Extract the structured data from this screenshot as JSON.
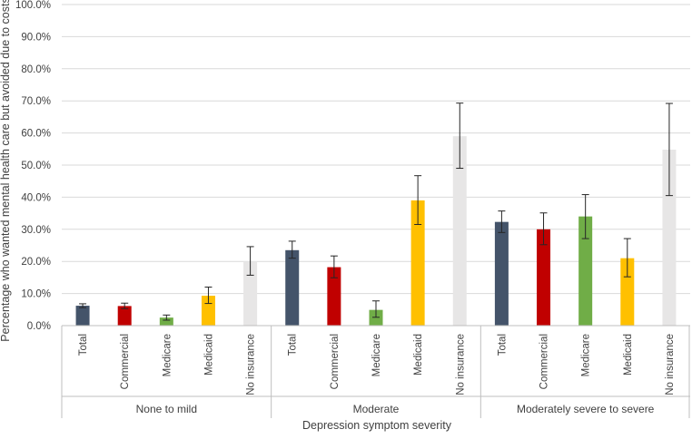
{
  "chart_data": {
    "type": "bar",
    "title": "",
    "ylabel": "Percentage who wanted mental health care but avoided due to costs",
    "xlabel": "Depression symptom severity",
    "ylim": [
      0,
      100
    ],
    "yticks": [
      "0.0%",
      "10.0%",
      "20.0%",
      "30.0%",
      "40.0%",
      "50.0%",
      "60.0%",
      "70.0%",
      "80.0%",
      "90.0%",
      "100.0%"
    ],
    "groups": [
      {
        "label": "None to mild",
        "bars": [
          {
            "label": "Total",
            "value": 6.2,
            "err_low": 5.6,
            "err_high": 6.8,
            "color": "#44546a"
          },
          {
            "label": "Commercial",
            "value": 6.1,
            "err_low": 5.3,
            "err_high": 7.0,
            "color": "#c00000"
          },
          {
            "label": "Medicare",
            "value": 2.5,
            "err_low": 1.7,
            "err_high": 3.3,
            "color": "#70ad47"
          },
          {
            "label": "Medicaid",
            "value": 9.3,
            "err_low": 6.9,
            "err_high": 12.0,
            "color": "#ffc000"
          },
          {
            "label": "No insurance",
            "value": 20.0,
            "err_low": 15.7,
            "err_high": 24.6,
            "color": "#e7e6e6"
          }
        ]
      },
      {
        "label": "Moderate",
        "bars": [
          {
            "label": "Total",
            "value": 23.5,
            "err_low": 21.0,
            "err_high": 26.3,
            "color": "#44546a"
          },
          {
            "label": "Commercial",
            "value": 18.2,
            "err_low": 14.9,
            "err_high": 21.7,
            "color": "#c00000"
          },
          {
            "label": "Medicare",
            "value": 4.9,
            "err_low": 2.6,
            "err_high": 7.7,
            "color": "#70ad47"
          },
          {
            "label": "Medicaid",
            "value": 39.0,
            "err_low": 31.5,
            "err_high": 46.7,
            "color": "#ffc000"
          },
          {
            "label": "No insurance",
            "value": 59.0,
            "err_low": 49.0,
            "err_high": 69.3,
            "color": "#e7e6e6"
          }
        ]
      },
      {
        "label": "Moderately severe to severe",
        "bars": [
          {
            "label": "Total",
            "value": 32.3,
            "err_low": 29.0,
            "err_high": 35.7,
            "color": "#44546a"
          },
          {
            "label": "Commercial",
            "value": 30.0,
            "err_low": 25.2,
            "err_high": 35.1,
            "color": "#c00000"
          },
          {
            "label": "Medicare",
            "value": 34.0,
            "err_low": 27.1,
            "err_high": 40.8,
            "color": "#70ad47"
          },
          {
            "label": "Medicaid",
            "value": 21.0,
            "err_low": 15.2,
            "err_high": 27.1,
            "color": "#ffc000"
          },
          {
            "label": "No insurance",
            "value": 54.8,
            "err_low": 40.5,
            "err_high": 69.2,
            "color": "#e7e6e6"
          }
        ]
      }
    ]
  }
}
